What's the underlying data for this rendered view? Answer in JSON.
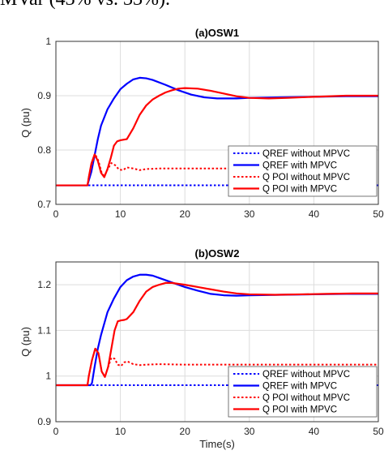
{
  "caption": "MVar (43% vs. 33%).",
  "chart_data": [
    {
      "type": "line",
      "title": "(a)OSW1",
      "xlabel": "",
      "ylabel": "Q (pu)",
      "xlim": [
        0,
        50
      ],
      "ylim": [
        0.7,
        1.0
      ],
      "xticks": [
        "0",
        "10",
        "20",
        "30",
        "40",
        "50"
      ],
      "yticks": [
        "0.7",
        "0.8",
        "0.9",
        "1"
      ],
      "grid": true,
      "legend_position": "bottom-right",
      "series": [
        {
          "name": "QREF without MPVC",
          "color": "#0000ff",
          "style": "dotted",
          "x": [
            0,
            50
          ],
          "y": [
            0.735,
            0.735
          ]
        },
        {
          "name": "QREF with MPVC",
          "color": "#0000ff",
          "style": "solid",
          "x": [
            0,
            4.9,
            5.0,
            5.5,
            6.0,
            6.5,
            7.0,
            8.0,
            9.0,
            10.0,
            11.0,
            12.0,
            13.0,
            14.0,
            15.0,
            17.0,
            19.0,
            21.0,
            23.0,
            25.0,
            28.0,
            30.0,
            35.0,
            40.0,
            45.0,
            50.0
          ],
          "y": [
            0.735,
            0.735,
            0.74,
            0.76,
            0.79,
            0.82,
            0.845,
            0.875,
            0.895,
            0.912,
            0.922,
            0.93,
            0.933,
            0.932,
            0.929,
            0.92,
            0.91,
            0.902,
            0.897,
            0.895,
            0.895,
            0.896,
            0.897,
            0.898,
            0.899,
            0.899
          ]
        },
        {
          "name": "Q POI without MPVC",
          "color": "#ff0000",
          "style": "dotted",
          "x": [
            0,
            4.9,
            5.1,
            5.6,
            6.1,
            6.6,
            7.1,
            7.5,
            8.0,
            8.6,
            9.2,
            9.8,
            10.4,
            11.0,
            12.0,
            13.0,
            14.0,
            16.0,
            20.0,
            50.0
          ],
          "y": [
            0.735,
            0.735,
            0.75,
            0.775,
            0.792,
            0.78,
            0.758,
            0.752,
            0.764,
            0.776,
            0.772,
            0.764,
            0.763,
            0.768,
            0.766,
            0.763,
            0.765,
            0.766,
            0.766,
            0.766
          ]
        },
        {
          "name": "Q POI with MPVC",
          "color": "#ff0000",
          "style": "solid",
          "x": [
            0,
            4.9,
            5.1,
            5.5,
            6.0,
            6.5,
            7.0,
            7.5,
            8.0,
            8.5,
            9.0,
            9.5,
            10.0,
            11.0,
            12.0,
            13.0,
            14.0,
            15.0,
            16.0,
            17.0,
            18.0,
            19.0,
            20.0,
            22.0,
            24.0,
            26.0,
            28.0,
            30.0,
            33.0,
            36.0,
            40.0,
            45.0,
            50.0
          ],
          "y": [
            0.735,
            0.735,
            0.75,
            0.775,
            0.792,
            0.78,
            0.758,
            0.75,
            0.765,
            0.785,
            0.808,
            0.816,
            0.818,
            0.82,
            0.84,
            0.865,
            0.882,
            0.893,
            0.9,
            0.906,
            0.91,
            0.913,
            0.914,
            0.913,
            0.909,
            0.904,
            0.899,
            0.896,
            0.895,
            0.896,
            0.898,
            0.9,
            0.9
          ]
        }
      ]
    },
    {
      "type": "line",
      "title": "(b)OSW2",
      "xlabel": "Time(s)",
      "ylabel": "Q (pu)",
      "xlim": [
        0,
        50
      ],
      "ylim": [
        0.9,
        1.25
      ],
      "xticks": [
        "0",
        "10",
        "20",
        "30",
        "40",
        "50"
      ],
      "yticks": [
        "0.9",
        "1",
        "1.1",
        "1.2"
      ],
      "grid": true,
      "legend_position": "bottom-right",
      "series": [
        {
          "name": "QREF without MPVC",
          "color": "#0000ff",
          "style": "dotted",
          "x": [
            0,
            50
          ],
          "y": [
            0.98,
            0.98
          ]
        },
        {
          "name": "QREF with MPVC",
          "color": "#0000ff",
          "style": "solid",
          "x": [
            0,
            5.4,
            5.6,
            6.0,
            6.5,
            7.0,
            8.0,
            9.0,
            10.0,
            11.0,
            12.0,
            13.0,
            14.0,
            15.0,
            16.0,
            18.0,
            20.0,
            22.0,
            24.0,
            26.0,
            28.0,
            30.0,
            35.0,
            40.0,
            45.0,
            50.0
          ],
          "y": [
            0.98,
            0.98,
            0.985,
            1.02,
            1.06,
            1.09,
            1.14,
            1.17,
            1.195,
            1.21,
            1.218,
            1.222,
            1.222,
            1.22,
            1.215,
            1.205,
            1.195,
            1.187,
            1.18,
            1.177,
            1.176,
            1.177,
            1.178,
            1.179,
            1.18,
            1.18
          ]
        },
        {
          "name": "Q POI without MPVC",
          "color": "#ff0000",
          "style": "dotted",
          "x": [
            0,
            4.9,
            5.1,
            5.6,
            6.1,
            6.6,
            7.1,
            7.6,
            8.1,
            8.6,
            9.1,
            9.6,
            10.1,
            10.6,
            11.1,
            12.0,
            13.0,
            14.0,
            16.0,
            20.0,
            50.0
          ],
          "y": [
            0.98,
            0.98,
            1.0,
            1.035,
            1.06,
            1.05,
            1.01,
            0.998,
            1.02,
            1.04,
            1.038,
            1.025,
            1.022,
            1.03,
            1.032,
            1.026,
            1.024,
            1.025,
            1.026,
            1.025,
            1.025
          ]
        },
        {
          "name": "Q POI with MPVC",
          "color": "#ff0000",
          "style": "solid",
          "x": [
            0,
            4.9,
            5.1,
            5.6,
            6.1,
            6.6,
            7.1,
            7.6,
            8.1,
            8.6,
            9.1,
            9.6,
            10.1,
            10.6,
            11.0,
            12.0,
            13.0,
            14.0,
            15.0,
            16.0,
            17.0,
            18.0,
            19.0,
            20.0,
            22.0,
            24.0,
            26.0,
            28.0,
            30.0,
            34.0,
            38.0,
            42.0,
            46.0,
            50.0
          ],
          "y": [
            0.98,
            0.98,
            1.0,
            1.035,
            1.06,
            1.05,
            1.01,
            0.998,
            1.02,
            1.06,
            1.1,
            1.12,
            1.122,
            1.123,
            1.125,
            1.14,
            1.165,
            1.185,
            1.195,
            1.2,
            1.204,
            1.204,
            1.202,
            1.2,
            1.195,
            1.19,
            1.185,
            1.181,
            1.179,
            1.178,
            1.179,
            1.18,
            1.181,
            1.181
          ]
        }
      ]
    }
  ]
}
